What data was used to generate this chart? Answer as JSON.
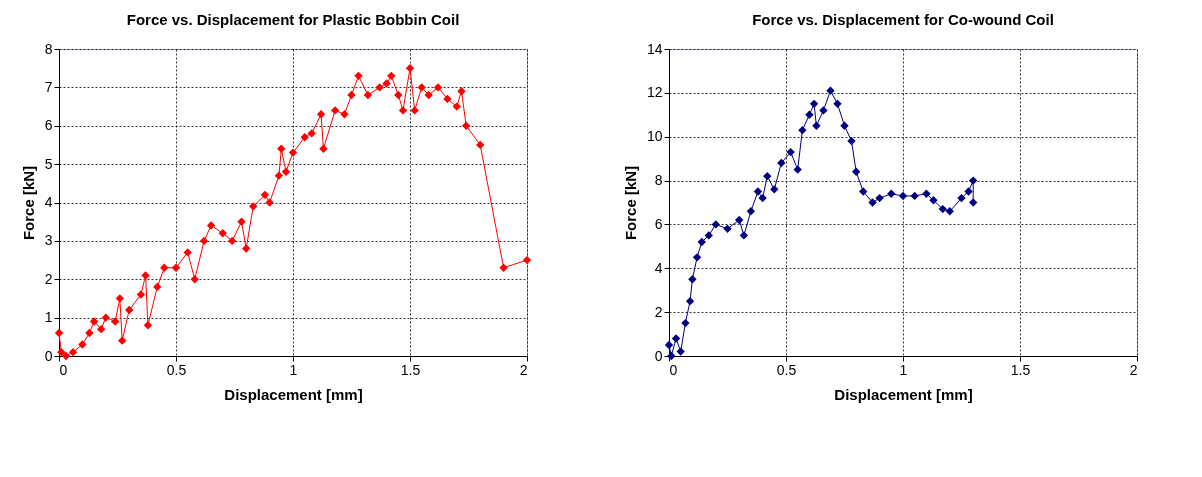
{
  "chart_data": [
    {
      "type": "line",
      "title": "Force vs. Displacement for Plastic Bobbin Coil",
      "xlabel": "Displacement [mm]",
      "ylabel": "Force [kN]",
      "xlim": [
        0,
        2
      ],
      "xticks": [
        0,
        0.5,
        1,
        1.5,
        2
      ],
      "ylim": [
        0,
        8
      ],
      "yticks": [
        0,
        1,
        2,
        3,
        4,
        5,
        6,
        7,
        8
      ],
      "grid": true,
      "marker": "diamond",
      "series": [
        {
          "color": "#ff0000",
          "x": [
            0,
            0.01,
            0.03,
            0.06,
            0.1,
            0.13,
            0.15,
            0.18,
            0.2,
            0.24,
            0.26,
            0.27,
            0.3,
            0.35,
            0.37,
            0.38,
            0.42,
            0.45,
            0.5,
            0.55,
            0.58,
            0.62,
            0.65,
            0.7,
            0.74,
            0.78,
            0.8,
            0.83,
            0.88,
            0.9,
            0.94,
            0.95,
            0.97,
            1.0,
            1.05,
            1.08,
            1.12,
            1.13,
            1.18,
            1.22,
            1.25,
            1.28,
            1.32,
            1.37,
            1.4,
            1.42,
            1.45,
            1.47,
            1.5,
            1.52,
            1.55,
            1.58,
            1.62,
            1.66,
            1.7,
            1.72,
            1.74,
            1.8,
            1.9,
            2.0
          ],
          "values": [
            0.6,
            0.1,
            0,
            0.1,
            0.3,
            0.6,
            0.9,
            0.7,
            1.0,
            0.9,
            1.5,
            0.4,
            1.2,
            1.6,
            2.1,
            0.8,
            1.8,
            2.3,
            2.3,
            2.7,
            2.0,
            3.0,
            3.4,
            3.2,
            3.0,
            3.5,
            2.8,
            3.9,
            4.2,
            4.0,
            4.7,
            5.4,
            4.8,
            5.3,
            5.7,
            5.8,
            6.3,
            5.4,
            6.4,
            6.3,
            6.8,
            7.3,
            6.8,
            7.0,
            7.1,
            7.3,
            6.8,
            6.4,
            7.5,
            6.4,
            7.0,
            6.8,
            7.0,
            6.7,
            6.5,
            6.9,
            6.0,
            5.5,
            2.3,
            2.5
          ]
        }
      ]
    },
    {
      "type": "line",
      "title": "Force vs. Displacement for Co-wound Coil",
      "xlabel": "Displacement [mm]",
      "ylabel": "Force [kN]",
      "xlim": [
        0,
        2
      ],
      "xticks": [
        0,
        0.5,
        1,
        1.5,
        2
      ],
      "ylim": [
        0,
        14
      ],
      "yticks": [
        0,
        2,
        4,
        6,
        8,
        10,
        12,
        14
      ],
      "grid": true,
      "marker": "diamond",
      "series": [
        {
          "color": "#000080",
          "x": [
            0,
            0.01,
            0.03,
            0.05,
            0.07,
            0.09,
            0.1,
            0.12,
            0.14,
            0.17,
            0.2,
            0.25,
            0.3,
            0.32,
            0.35,
            0.38,
            0.4,
            0.42,
            0.45,
            0.48,
            0.52,
            0.55,
            0.57,
            0.6,
            0.62,
            0.63,
            0.66,
            0.69,
            0.72,
            0.75,
            0.78,
            0.8,
            0.83,
            0.87,
            0.9,
            0.95,
            1.0,
            1.05,
            1.1,
            1.13,
            1.17,
            1.2,
            1.25,
            1.28,
            1.3,
            1.3
          ],
          "values": [
            0.5,
            0.0,
            0.8,
            0.2,
            1.5,
            2.5,
            3.5,
            4.5,
            5.2,
            5.5,
            6.0,
            5.8,
            6.2,
            5.5,
            6.6,
            7.5,
            7.2,
            8.2,
            7.6,
            8.8,
            9.3,
            8.5,
            10.3,
            11.0,
            11.5,
            10.5,
            11.2,
            12.1,
            11.5,
            10.5,
            9.8,
            8.4,
            7.5,
            7.0,
            7.2,
            7.4,
            7.3,
            7.3,
            7.4,
            7.1,
            6.7,
            6.6,
            7.2,
            7.5,
            8.0,
            7.0
          ]
        }
      ]
    }
  ]
}
